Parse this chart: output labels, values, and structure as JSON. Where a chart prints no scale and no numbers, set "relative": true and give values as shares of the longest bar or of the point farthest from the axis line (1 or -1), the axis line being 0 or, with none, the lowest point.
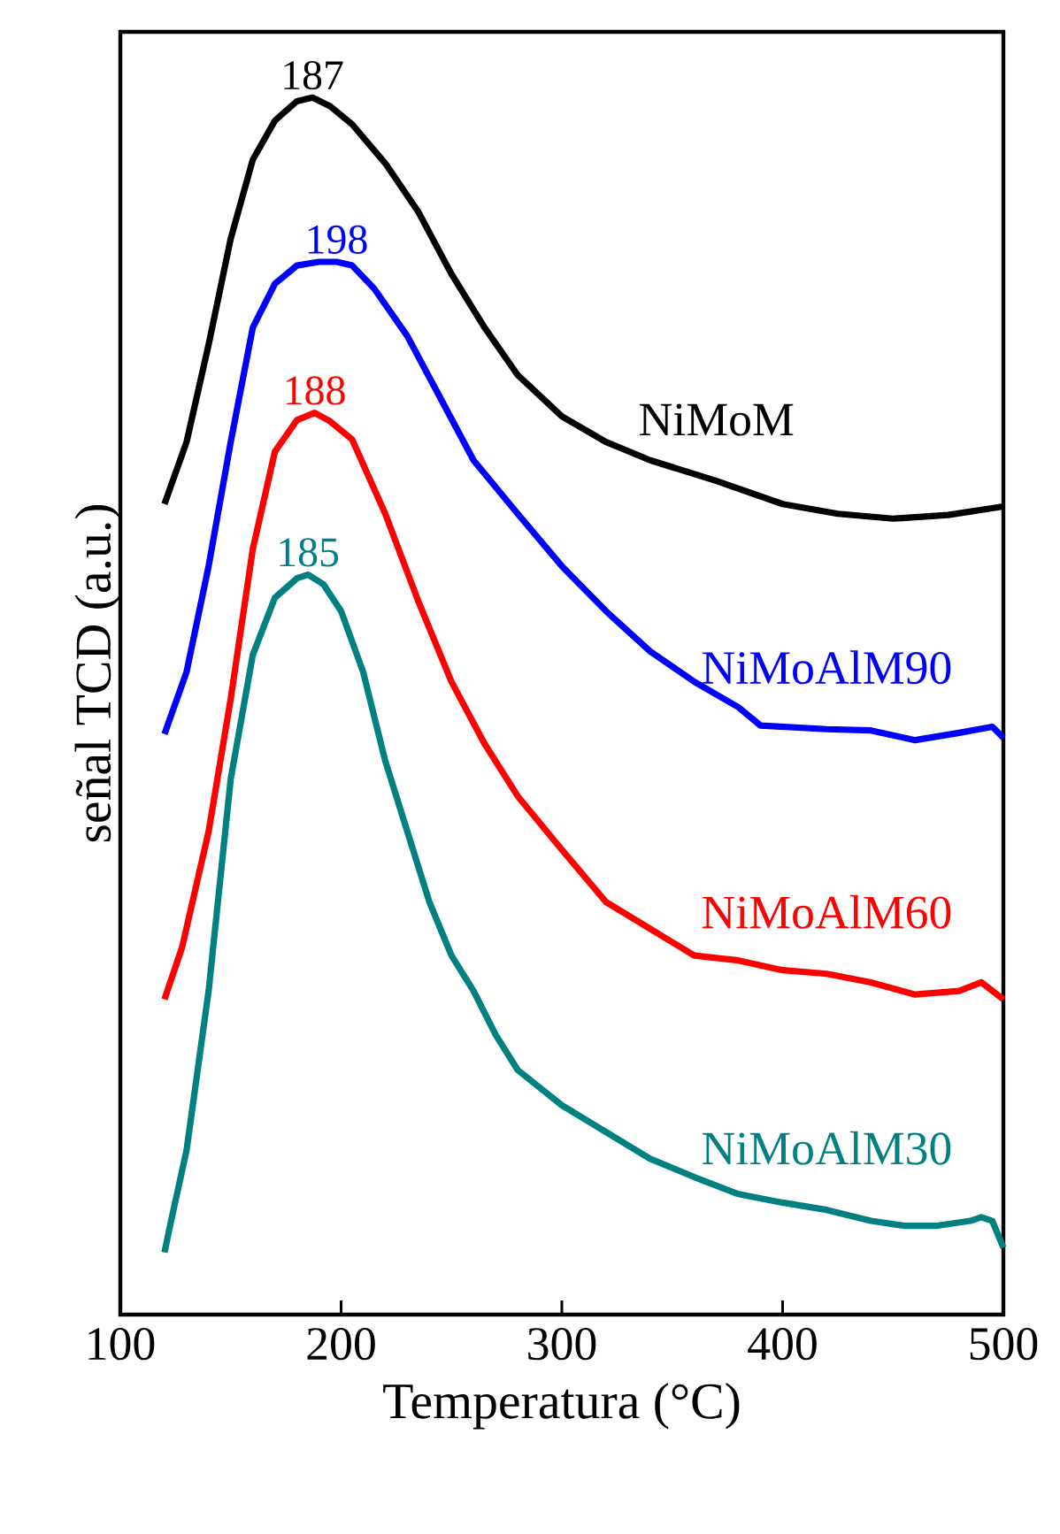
{
  "chart_data": {
    "type": "line",
    "relative": true,
    "xlabel": "Temperatura (°C)",
    "ylabel": "señal TCD (a.u.)",
    "xlim": [
      100,
      500
    ],
    "xticks": [
      100,
      200,
      300,
      400,
      500
    ],
    "marker": "none",
    "line_style": "solid",
    "grid": false,
    "legend": false,
    "tick_labels": "x",
    "series": [
      {
        "name": "NiMoM",
        "color": "#000000",
        "x": [
          120,
          130,
          140,
          150,
          160,
          170,
          180,
          187,
          195,
          205,
          220,
          235,
          250,
          265,
          280,
          300,
          320,
          340,
          370,
          400,
          425,
          450,
          475,
          500
        ],
        "values": [
          0.666,
          0.717,
          0.797,
          0.884,
          0.949,
          0.981,
          0.997,
          1.0,
          0.993,
          0.978,
          0.946,
          0.906,
          0.855,
          0.811,
          0.772,
          0.738,
          0.717,
          0.702,
          0.685,
          0.666,
          0.658,
          0.654,
          0.657,
          0.664
        ]
      },
      {
        "name": "NiMoAlM90",
        "color": "#0000ff",
        "x": [
          120,
          130,
          140,
          150,
          160,
          170,
          180,
          190,
          198,
          205,
          215,
          230,
          245,
          260,
          280,
          300,
          320,
          340,
          360,
          380,
          390,
          420,
          440,
          460,
          480,
          495,
          500
        ],
        "values": [
          0.477,
          0.528,
          0.615,
          0.717,
          0.811,
          0.847,
          0.862,
          0.865,
          0.865,
          0.862,
          0.843,
          0.804,
          0.753,
          0.702,
          0.658,
          0.615,
          0.578,
          0.545,
          0.52,
          0.499,
          0.484,
          0.481,
          0.48,
          0.472,
          0.478,
          0.483,
          0.474
        ]
      },
      {
        "name": "NiMoAlM60",
        "color": "#ff0000",
        "x": [
          120,
          128,
          140,
          150,
          160,
          170,
          180,
          188,
          195,
          205,
          220,
          235,
          250,
          265,
          280,
          300,
          320,
          340,
          360,
          380,
          400,
          420,
          440,
          460,
          480,
          490,
          500
        ],
        "values": [
          0.259,
          0.302,
          0.397,
          0.506,
          0.629,
          0.709,
          0.735,
          0.741,
          0.734,
          0.719,
          0.658,
          0.586,
          0.52,
          0.469,
          0.426,
          0.382,
          0.339,
          0.317,
          0.295,
          0.291,
          0.283,
          0.28,
          0.273,
          0.263,
          0.266,
          0.273,
          0.259
        ]
      },
      {
        "name": "NiMoAlM30",
        "color": "#008080",
        "x": [
          120,
          123,
          130,
          140,
          150,
          160,
          170,
          180,
          185,
          192,
          200,
          210,
          220,
          230,
          240,
          250,
          260,
          270,
          280,
          300,
          320,
          340,
          360,
          380,
          400,
          420,
          440,
          455,
          470,
          485,
          490,
          495,
          500
        ],
        "values": [
          0.051,
          0.077,
          0.135,
          0.266,
          0.44,
          0.542,
          0.589,
          0.605,
          0.608,
          0.6,
          0.578,
          0.528,
          0.455,
          0.397,
          0.339,
          0.295,
          0.266,
          0.23,
          0.201,
          0.172,
          0.15,
          0.128,
          0.113,
          0.099,
          0.092,
          0.086,
          0.077,
          0.073,
          0.073,
          0.077,
          0.08,
          0.077,
          0.055
        ]
      }
    ],
    "annotations": [
      {
        "text": "187",
        "x": 187,
        "y": 1.0
      },
      {
        "text": "198",
        "x": 198,
        "y": 0.865
      },
      {
        "text": "188",
        "x": 188,
        "y": 0.741
      },
      {
        "text": "185",
        "x": 185,
        "y": 0.608
      }
    ]
  }
}
